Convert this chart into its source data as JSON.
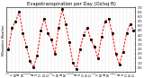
{
  "title": "Evapotranspiration per Day (Oz/sq ft)",
  "x_labels": [
    "J",
    "F",
    "M",
    "A",
    "M",
    "J",
    "J",
    "A",
    "S",
    "O",
    "N",
    "D",
    "J",
    "F",
    "M",
    "A",
    "M",
    "J",
    "J",
    "A",
    "S",
    "O",
    "N",
    "D",
    "J",
    "F",
    "M",
    "A",
    "M",
    "J",
    "J",
    "A",
    "S",
    "O",
    "N",
    "D"
  ],
  "values": [
    2.5,
    4.8,
    5.5,
    6.5,
    4.2,
    2.8,
    1.2,
    0.5,
    1.8,
    4.5,
    5.8,
    4.2,
    3.5,
    2.0,
    4.8,
    6.8,
    5.2,
    3.2,
    1.0,
    0.3,
    2.5,
    4.0,
    4.8,
    3.5,
    2.8,
    1.5,
    3.8,
    5.5,
    5.8,
    4.2,
    2.0,
    0.8,
    2.2,
    4.2,
    5.2,
    4.5
  ],
  "line_color": "#FF0000",
  "dot_color": "#000000",
  "background_color": "#ffffff",
  "grid_color": "#999999",
  "ylim": [
    0,
    7
  ],
  "ytick_labels": [
    "7.0",
    "6.5",
    "6.0",
    "5.5",
    "5.0",
    "4.5",
    "4.0",
    "3.5",
    "3.0",
    "2.5",
    "2.0",
    "1.5",
    "1.0",
    "0.5"
  ],
  "ytick_values": [
    7.0,
    6.5,
    6.0,
    5.5,
    5.0,
    4.5,
    4.0,
    3.5,
    3.0,
    2.5,
    2.0,
    1.5,
    1.0,
    0.5
  ],
  "title_fontsize": 3.8,
  "tick_fontsize": 2.5,
  "line_width": 0.7,
  "dot_size": 1.5,
  "left_label": "Milwaukee Weather"
}
